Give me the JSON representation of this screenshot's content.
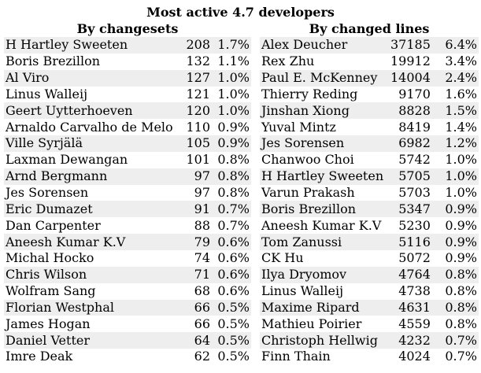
{
  "title": "Most active 4.7 developers",
  "by_changesets": {
    "heading": "By changesets",
    "rows": [
      {
        "name": "H Hartley Sweeten",
        "count": "208",
        "percent": "1.7%"
      },
      {
        "name": "Boris Brezillon",
        "count": "132",
        "percent": "1.1%"
      },
      {
        "name": "Al Viro",
        "count": "127",
        "percent": "1.0%"
      },
      {
        "name": "Linus Walleij",
        "count": "121",
        "percent": "1.0%"
      },
      {
        "name": "Geert Uytterhoeven",
        "count": "120",
        "percent": "1.0%"
      },
      {
        "name": "Arnaldo Carvalho de Melo",
        "count": "110",
        "percent": "0.9%"
      },
      {
        "name": "Ville Syrjälä",
        "count": "105",
        "percent": "0.9%"
      },
      {
        "name": "Laxman Dewangan",
        "count": "101",
        "percent": "0.8%"
      },
      {
        "name": "Arnd Bergmann",
        "count": "97",
        "percent": "0.8%"
      },
      {
        "name": "Jes Sorensen",
        "count": "97",
        "percent": "0.8%"
      },
      {
        "name": "Eric Dumazet",
        "count": "91",
        "percent": "0.7%"
      },
      {
        "name": "Dan Carpenter",
        "count": "88",
        "percent": "0.7%"
      },
      {
        "name": "Aneesh Kumar K.V",
        "count": "79",
        "percent": "0.6%"
      },
      {
        "name": "Michal Hocko",
        "count": "74",
        "percent": "0.6%"
      },
      {
        "name": "Chris Wilson",
        "count": "71",
        "percent": "0.6%"
      },
      {
        "name": "Wolfram Sang",
        "count": "68",
        "percent": "0.6%"
      },
      {
        "name": "Florian Westphal",
        "count": "66",
        "percent": "0.5%"
      },
      {
        "name": "James Hogan",
        "count": "66",
        "percent": "0.5%"
      },
      {
        "name": "Daniel Vetter",
        "count": "64",
        "percent": "0.5%"
      },
      {
        "name": "Imre Deak",
        "count": "62",
        "percent": "0.5%"
      }
    ]
  },
  "by_changed_lines": {
    "heading": "By changed lines",
    "rows": [
      {
        "name": "Alex Deucher",
        "count": "37185",
        "percent": "6.4%"
      },
      {
        "name": "Rex Zhu",
        "count": "19912",
        "percent": "3.4%"
      },
      {
        "name": "Paul E. McKenney",
        "count": "14004",
        "percent": "2.4%"
      },
      {
        "name": "Thierry Reding",
        "count": "9170",
        "percent": "1.6%"
      },
      {
        "name": "Jinshan Xiong",
        "count": "8828",
        "percent": "1.5%"
      },
      {
        "name": "Yuval Mintz",
        "count": "8419",
        "percent": "1.4%"
      },
      {
        "name": "Jes Sorensen",
        "count": "6982",
        "percent": "1.2%"
      },
      {
        "name": "Chanwoo Choi",
        "count": "5742",
        "percent": "1.0%"
      },
      {
        "name": "H Hartley Sweeten",
        "count": "5705",
        "percent": "1.0%"
      },
      {
        "name": "Varun Prakash",
        "count": "5703",
        "percent": "1.0%"
      },
      {
        "name": "Boris Brezillon",
        "count": "5347",
        "percent": "0.9%"
      },
      {
        "name": "Aneesh Kumar K.V",
        "count": "5230",
        "percent": "0.9%"
      },
      {
        "name": "Tom Zanussi",
        "count": "5116",
        "percent": "0.9%"
      },
      {
        "name": "CK Hu",
        "count": "5072",
        "percent": "0.9%"
      },
      {
        "name": "Ilya Dryomov",
        "count": "4764",
        "percent": "0.8%"
      },
      {
        "name": "Linus Walleij",
        "count": "4738",
        "percent": "0.8%"
      },
      {
        "name": "Maxime Ripard",
        "count": "4631",
        "percent": "0.8%"
      },
      {
        "name": "Mathieu Poirier",
        "count": "4559",
        "percent": "0.8%"
      },
      {
        "name": "Christoph Hellwig",
        "count": "4232",
        "percent": "0.7%"
      },
      {
        "name": "Finn Thain",
        "count": "4024",
        "percent": "0.7%"
      }
    ]
  },
  "colors": {
    "stripe": "#eeeeee",
    "background": "#ffffff",
    "text": "#000000"
  }
}
